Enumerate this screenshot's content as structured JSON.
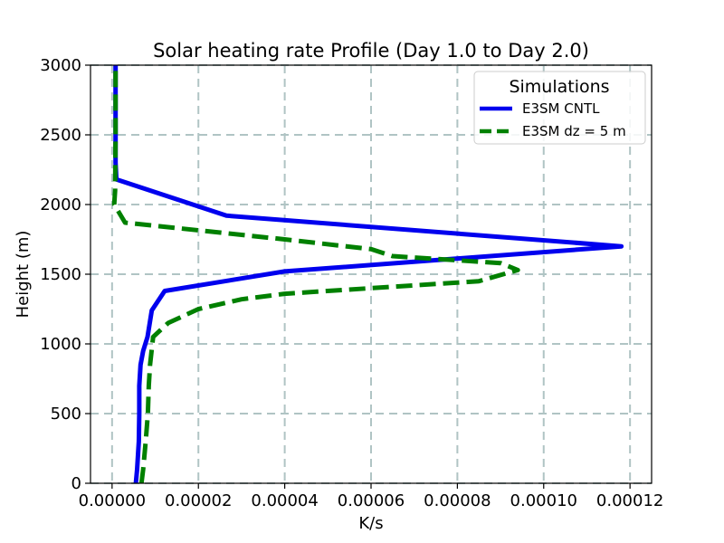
{
  "chart_data": {
    "type": "line",
    "title": "Solar heating rate Profile (Day 1.0 to Day 2.0)",
    "xlabel": "K/s",
    "ylabel": "Height (m)",
    "xlim": [
      -5e-06,
      0.000125
    ],
    "ylim": [
      0,
      3000
    ],
    "xticks": [
      0,
      2e-05,
      4e-05,
      6e-05,
      8e-05,
      0.0001,
      0.00012
    ],
    "xtick_labels": [
      "0.00000",
      "0.00002",
      "0.00004",
      "0.00006",
      "0.00008",
      "0.00010",
      "0.00012"
    ],
    "yticks": [
      0,
      500,
      1000,
      1500,
      2000,
      2500,
      3000
    ],
    "ytick_labels": [
      "0",
      "500",
      "1000",
      "1500",
      "2000",
      "2500",
      "3000"
    ],
    "grid": true,
    "legend": {
      "title": "Simulations",
      "placement": "top-right"
    },
    "series": [
      {
        "name": "E3SM CNTL",
        "color": "#0000ee",
        "style": "solid",
        "x": [
          5.5e-06,
          5.8e-06,
          6.2e-06,
          6.3e-06,
          6.3e-06,
          6.6e-06,
          7.2e-06,
          8.2e-06,
          9.2e-06,
          1.22e-05,
          4e-05,
          0.000118,
          2.65e-05,
          1e-06,
          8e-07,
          8e-07,
          8e-07,
          8e-07
        ],
        "y": [
          0,
          100,
          300,
          500,
          700,
          850,
          950,
          1050,
          1240,
          1380,
          1520,
          1700,
          1920,
          2180,
          2300,
          2500,
          2800,
          3000
        ]
      },
      {
        "name": "E3SM dz = 5 m",
        "color": "#008000",
        "style": "dashed",
        "x": [
          6.8e-06,
          7.2e-06,
          7.8e-06,
          8.3e-06,
          8.5e-06,
          8.8e-06,
          9.5e-06,
          1.3e-05,
          2e-05,
          3e-05,
          4e-05,
          6e-05,
          8.5e-05,
          9.4e-05,
          9e-05,
          6.5e-05,
          6e-05,
          4e-05,
          3e-06,
          5e-07,
          7e-07,
          8e-07,
          8e-07,
          8e-07
        ],
        "y": [
          0,
          100,
          300,
          500,
          700,
          850,
          1050,
          1150,
          1250,
          1320,
          1360,
          1400,
          1450,
          1530,
          1580,
          1630,
          1680,
          1750,
          1870,
          2000,
          2100,
          2500,
          2800,
          3000
        ]
      }
    ]
  }
}
